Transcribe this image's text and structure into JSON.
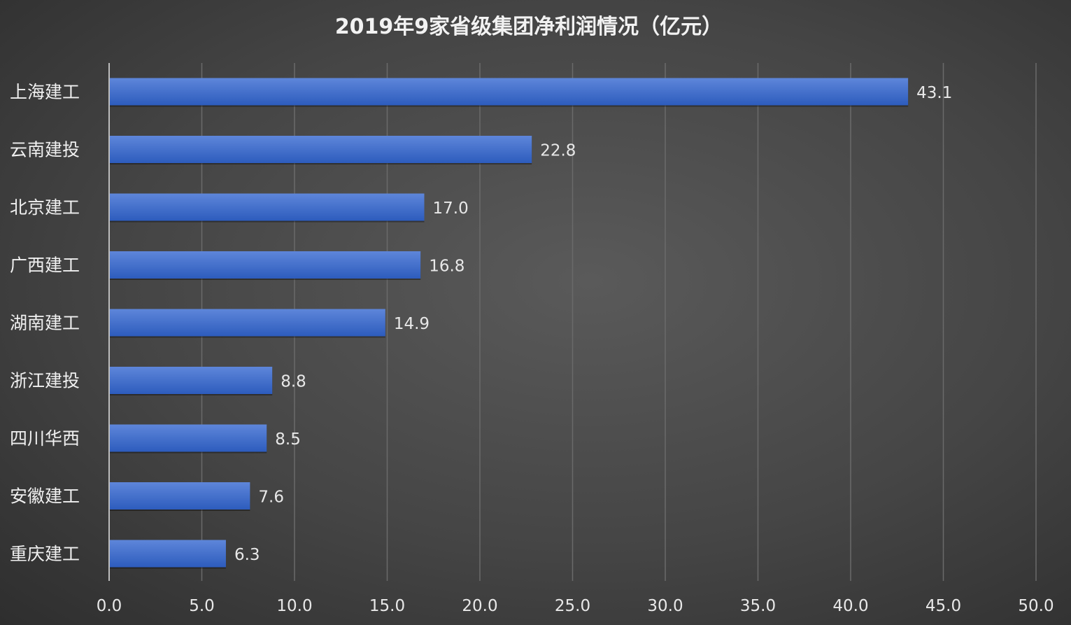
{
  "chart_data": {
    "type": "bar",
    "orientation": "horizontal",
    "title": "2019年9家省级集团净利润情况（亿元）",
    "categories": [
      "上海建工",
      "云南建投",
      "北京建工",
      "广西建工",
      "湖南建工",
      "浙江建投",
      "四川华西",
      "安徽建工",
      "重庆建工"
    ],
    "values": [
      43.1,
      22.8,
      17.0,
      16.8,
      14.9,
      8.8,
      8.5,
      7.6,
      6.3
    ],
    "data_labels": [
      "43.1",
      "22.8",
      "17.0",
      "16.8",
      "14.9",
      "8.8",
      "8.5",
      "7.6",
      "6.3"
    ],
    "xlim": [
      0,
      50
    ],
    "x_ticks": [
      "0.0",
      "5.0",
      "10.0",
      "15.0",
      "20.0",
      "25.0",
      "30.0",
      "35.0",
      "40.0",
      "45.0",
      "50.0"
    ],
    "xlabel": "",
    "ylabel": "",
    "grid": "vertical",
    "legend": "none",
    "colors": {
      "bar_top": "#5e86da",
      "bar_bottom": "#2d5cbd",
      "background": "#454545",
      "grid": "#6a6a6a"
    }
  }
}
